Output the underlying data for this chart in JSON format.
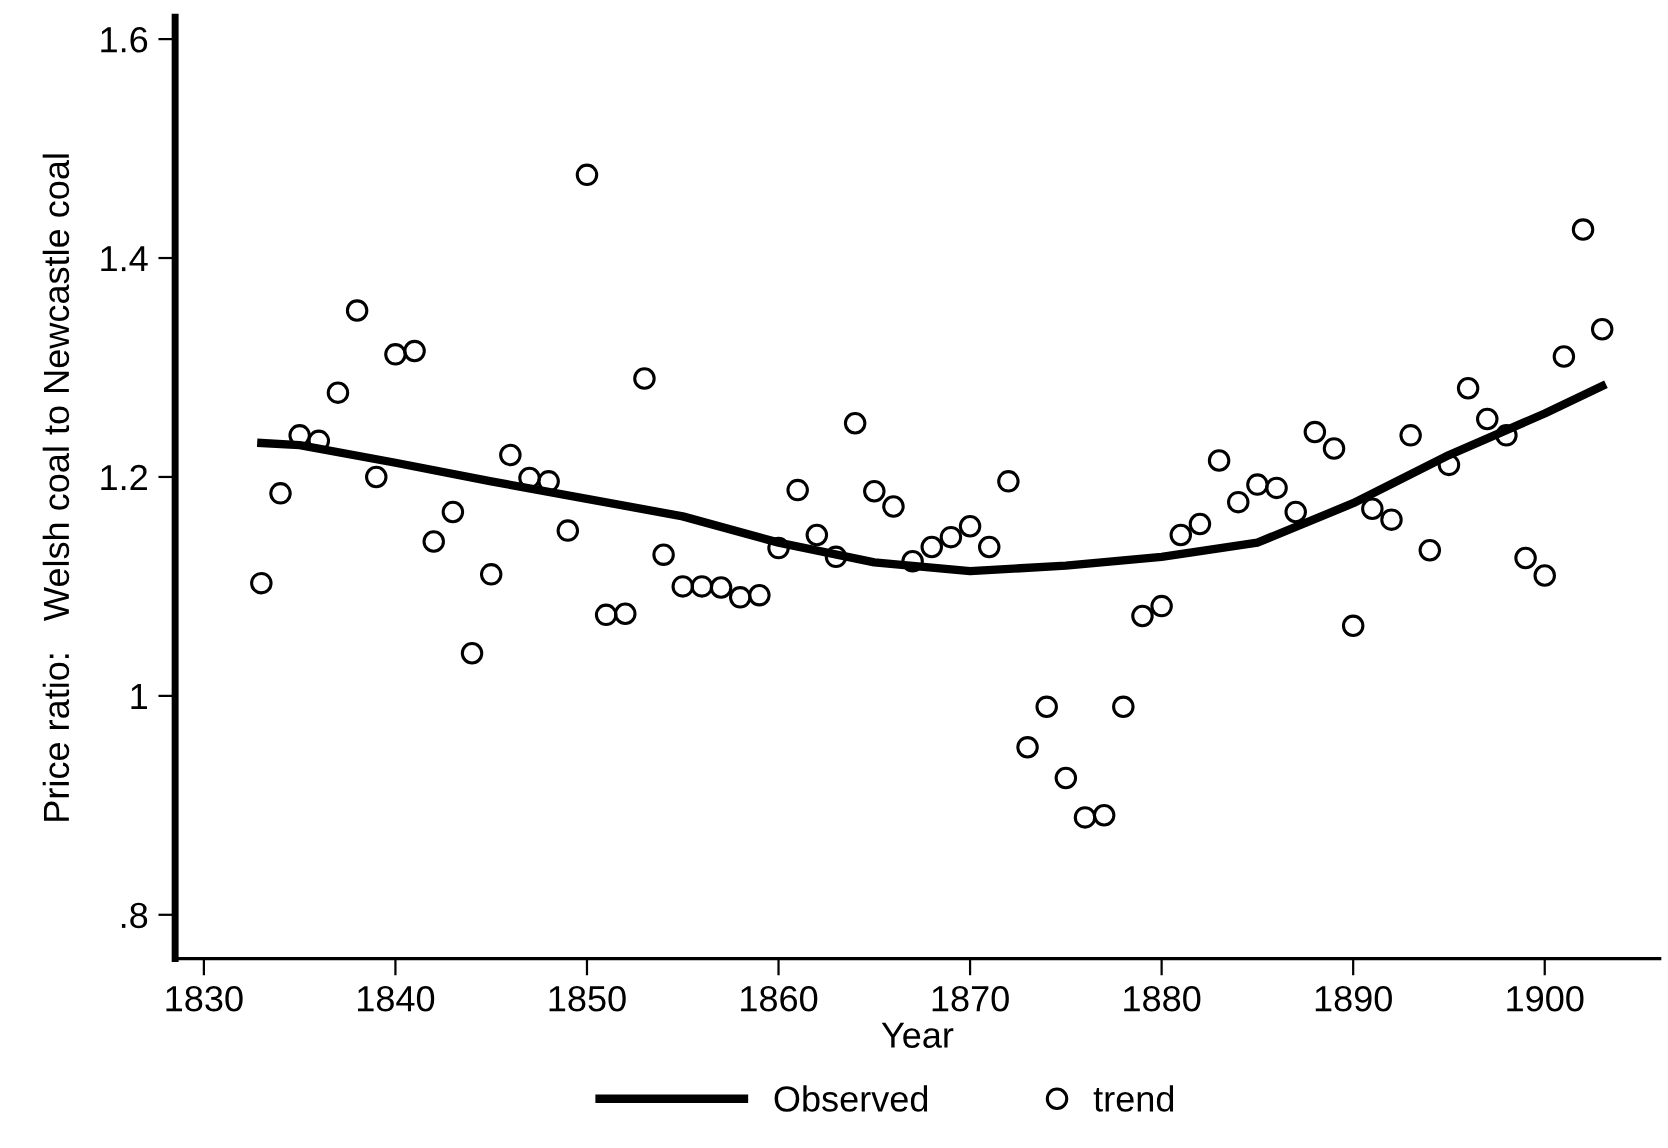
{
  "chart_data": {
    "type": "scatter",
    "xlabel": "Year",
    "ylabel": "Price ratio:   Welsh coal to Newcastle coal",
    "xlim": [
      1828.5,
      1906
    ],
    "xticks": [
      1830,
      1840,
      1850,
      1860,
      1870,
      1880,
      1890,
      1900
    ],
    "ylim": [
      0.76,
      1.62
    ],
    "yticks": [
      {
        "value": 0.8,
        "label": ".8"
      },
      {
        "value": 1,
        "label": "1"
      },
      {
        "value": 1.2,
        "label": "1.2"
      },
      {
        "value": 1.4,
        "label": "1.4"
      },
      {
        "value": 1.6,
        "label": "1.6"
      }
    ],
    "grid": false,
    "legend": "bottom",
    "series": [
      {
        "name": "Observed",
        "type": "line",
        "color": "#000000",
        "marker": "none",
        "line_style": "solid",
        "x": [
          1833,
          1835,
          1840,
          1845,
          1850,
          1855,
          1860,
          1865,
          1870,
          1875,
          1880,
          1885,
          1890,
          1895,
          1900,
          1903
        ],
        "values": [
          1.231,
          1.229,
          1.213,
          1.196,
          1.18,
          1.164,
          1.14,
          1.122,
          1.114,
          1.119,
          1.127,
          1.14,
          1.176,
          1.22,
          1.258,
          1.283
        ]
      },
      {
        "name": "trend",
        "type": "scatter",
        "color": "#000000",
        "marker": "circle",
        "x": [
          1833,
          1834,
          1835,
          1836,
          1837,
          1838,
          1839,
          1840,
          1841,
          1842,
          1843,
          1844,
          1845,
          1846,
          1847,
          1848,
          1849,
          1850,
          1851,
          1852,
          1853,
          1854,
          1855,
          1856,
          1857,
          1858,
          1859,
          1860,
          1861,
          1862,
          1863,
          1864,
          1865,
          1866,
          1867,
          1868,
          1869,
          1870,
          1871,
          1872,
          1873,
          1874,
          1875,
          1876,
          1877,
          1878,
          1879,
          1880,
          1881,
          1882,
          1883,
          1884,
          1885,
          1886,
          1887,
          1888,
          1889,
          1890,
          1891,
          1892,
          1893,
          1894,
          1895,
          1896,
          1897,
          1898,
          1899,
          1900,
          1901,
          1902,
          1903
        ],
        "values": [
          1.103,
          1.185,
          1.238,
          1.233,
          1.277,
          1.352,
          1.2,
          1.312,
          1.315,
          1.141,
          1.168,
          1.039,
          1.111,
          1.22,
          1.199,
          1.196,
          1.151,
          1.476,
          1.074,
          1.075,
          1.29,
          1.129,
          1.1,
          1.1,
          1.099,
          1.09,
          1.092,
          1.135,
          1.188,
          1.147,
          1.127,
          1.249,
          1.187,
          1.173,
          1.123,
          1.136,
          1.145,
          1.155,
          1.136,
          1.196,
          0.953,
          0.99,
          0.925,
          0.889,
          0.891,
          0.99,
          1.073,
          1.082,
          1.147,
          1.157,
          1.215,
          1.177,
          1.193,
          1.19,
          1.168,
          1.241,
          1.226,
          1.064,
          1.171,
          1.161,
          1.238,
          1.133,
          1.211,
          1.281,
          1.253,
          1.238,
          1.126,
          1.11,
          1.31,
          1.426,
          1.335
        ]
      }
    ]
  }
}
